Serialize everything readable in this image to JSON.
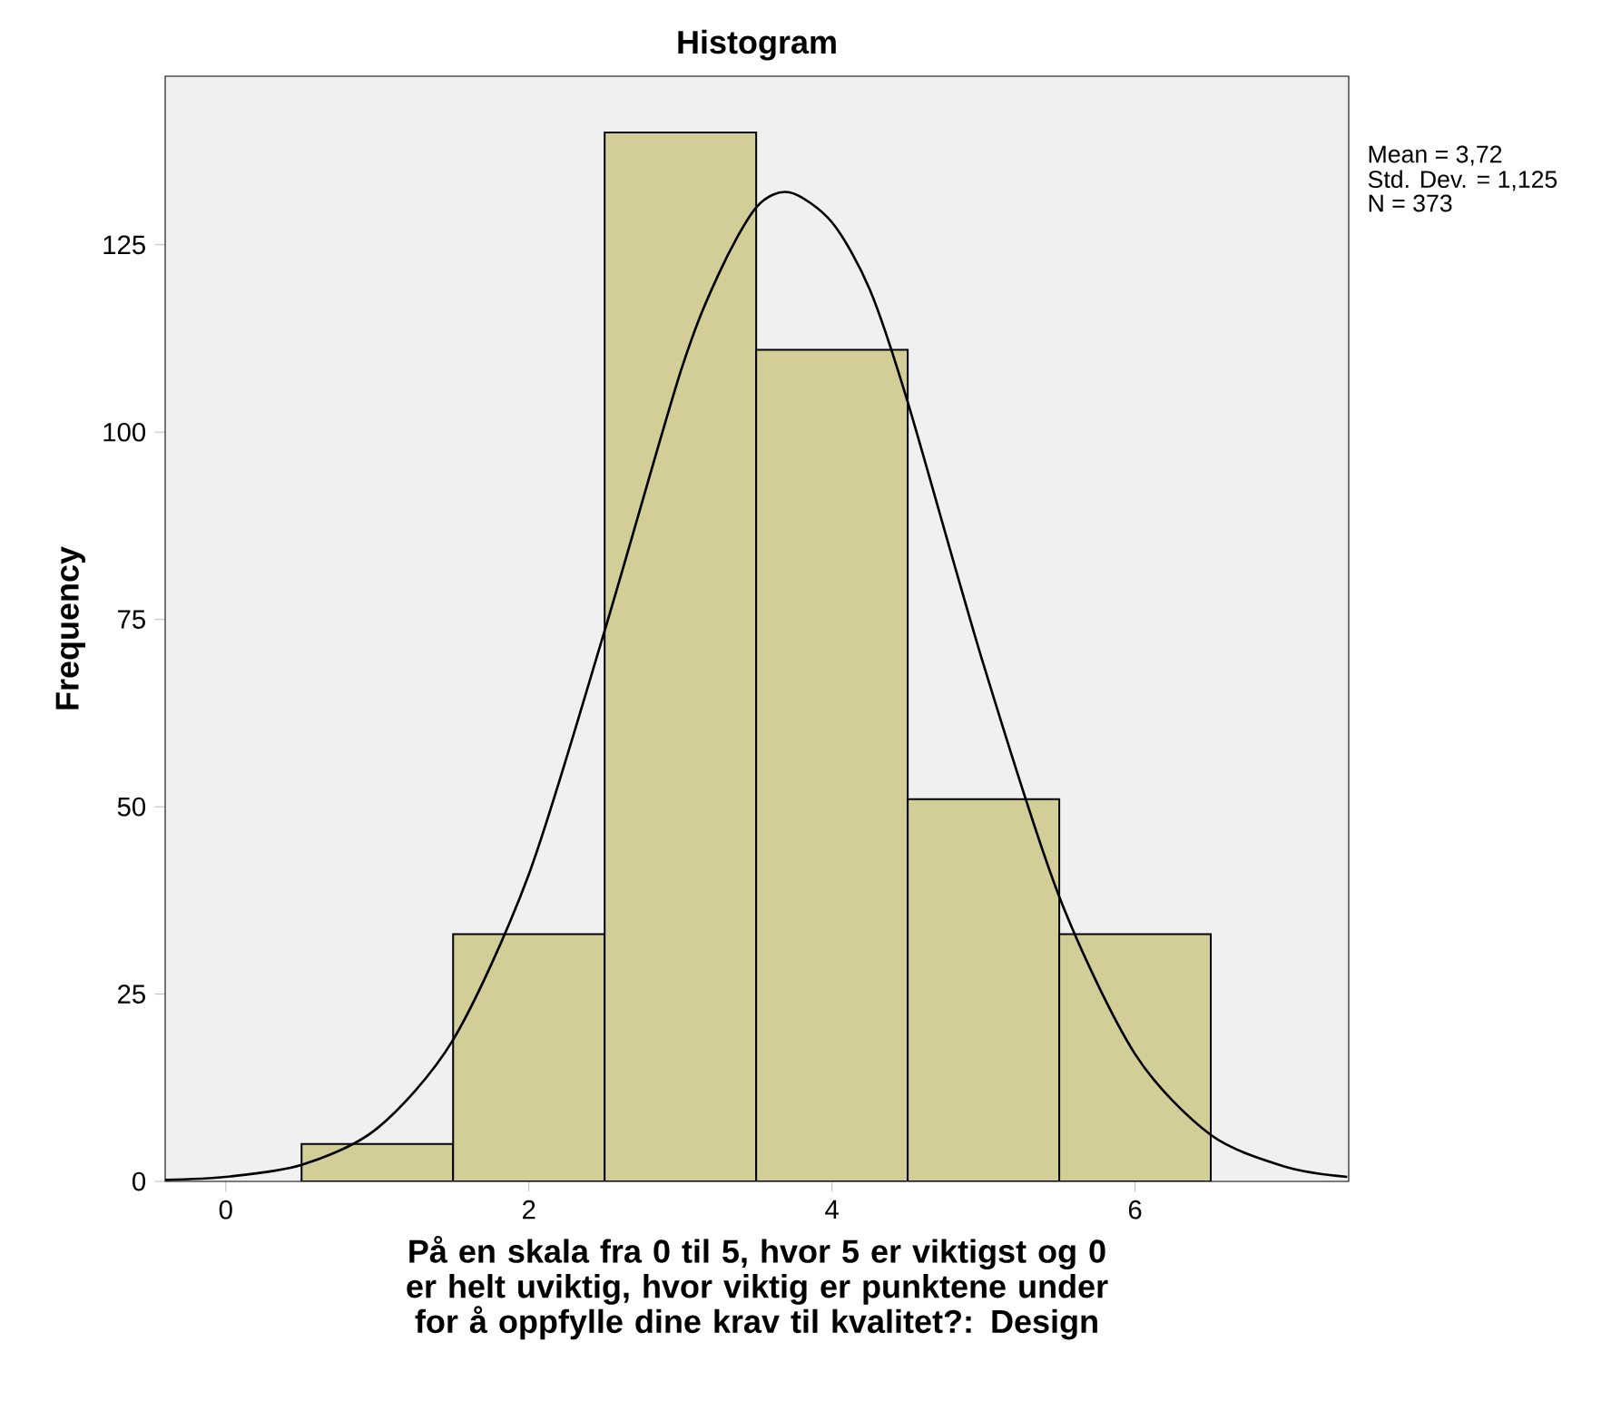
{
  "chart_data": {
    "type": "histogram",
    "title": "Histogram",
    "xlabel": "På en skala fra 0 til 5, hvor 5 er viktigst og 0 er helt uviktig, hvor viktig er punktene under for å oppfylle dine krav til kvalitet?: Design",
    "ylabel": "Frequency",
    "bins": [
      0.5,
      1.5,
      2.5,
      3.5,
      4.5,
      5.5,
      6.5
    ],
    "values": [
      5,
      33,
      140,
      111,
      51,
      33
    ],
    "color": "#d3ce98",
    "series": [
      {
        "type": "line",
        "color": "#000000",
        "x": [
          -0.4,
          0,
          0.5,
          1,
          1.5,
          2,
          2.5,
          3,
          3.25,
          3.5,
          3.72,
          4,
          4.25,
          4.5,
          5,
          5.5,
          6,
          6.5,
          7,
          7.4
        ],
        "values": [
          0.2,
          0.6,
          2.2,
          7.1,
          18.9,
          41,
          73.5,
          108,
          121,
          130,
          132,
          128,
          119,
          104,
          69,
          38,
          17,
          6.2,
          1.9,
          0.6
        ]
      }
    ],
    "xlim": [
      -0.4,
      7.41
    ],
    "ylim": [
      0,
      147.5
    ],
    "xticks": [
      0,
      2,
      4,
      6
    ],
    "yticks": [
      0,
      25,
      50,
      75,
      100,
      125
    ],
    "annotations": [
      "Mean = 3,72",
      "Std. Dev. = 1,125",
      "N = 373"
    ]
  }
}
